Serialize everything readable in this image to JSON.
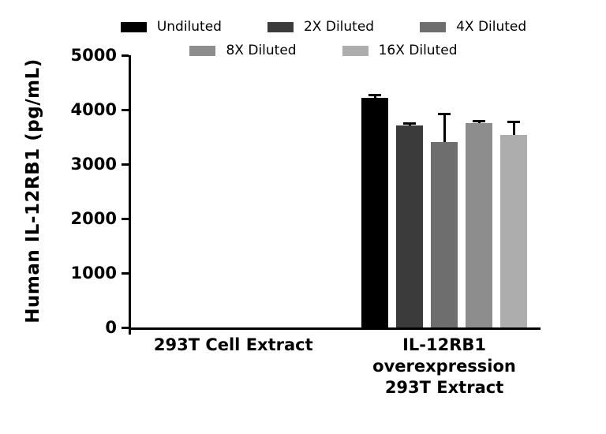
{
  "chart_data": {
    "type": "bar",
    "title": "",
    "xlabel": "",
    "ylabel": "Human IL-12RB1 (pg/mL)",
    "ylim": [
      0,
      5000
    ],
    "yticks": [
      0,
      1000,
      2000,
      3000,
      4000,
      5000
    ],
    "grid": false,
    "legend_position": "top",
    "categories": [
      "293T Cell Extract",
      "IL-12RB1 overexpression 293T Extract"
    ],
    "category_label_lines": [
      [
        "293T Cell Extract"
      ],
      [
        "IL-12RB1",
        "overexpression",
        "293T Extract"
      ]
    ],
    "group_centers": [
      0.25,
      0.765
    ],
    "series": [
      {
        "name": "Undiluted",
        "color": "#000000",
        "values": [
          0,
          4220
        ],
        "errors": [
          0,
          60
        ]
      },
      {
        "name": "2X Diluted",
        "color": "#3b3b3b",
        "values": [
          0,
          3710
        ],
        "errors": [
          0,
          50
        ]
      },
      {
        "name": "4X Diluted",
        "color": "#6e6e6e",
        "values": [
          0,
          3400
        ],
        "errors": [
          0,
          530
        ]
      },
      {
        "name": "8X Diluted",
        "color": "#8d8d8d",
        "values": [
          0,
          3760
        ],
        "errors": [
          0,
          30
        ]
      },
      {
        "name": "16X Diluted",
        "color": "#adadad",
        "values": [
          0,
          3540
        ],
        "errors": [
          0,
          240
        ]
      }
    ],
    "legend_rows": [
      [
        0,
        1,
        2
      ],
      [
        3,
        4
      ]
    ]
  }
}
